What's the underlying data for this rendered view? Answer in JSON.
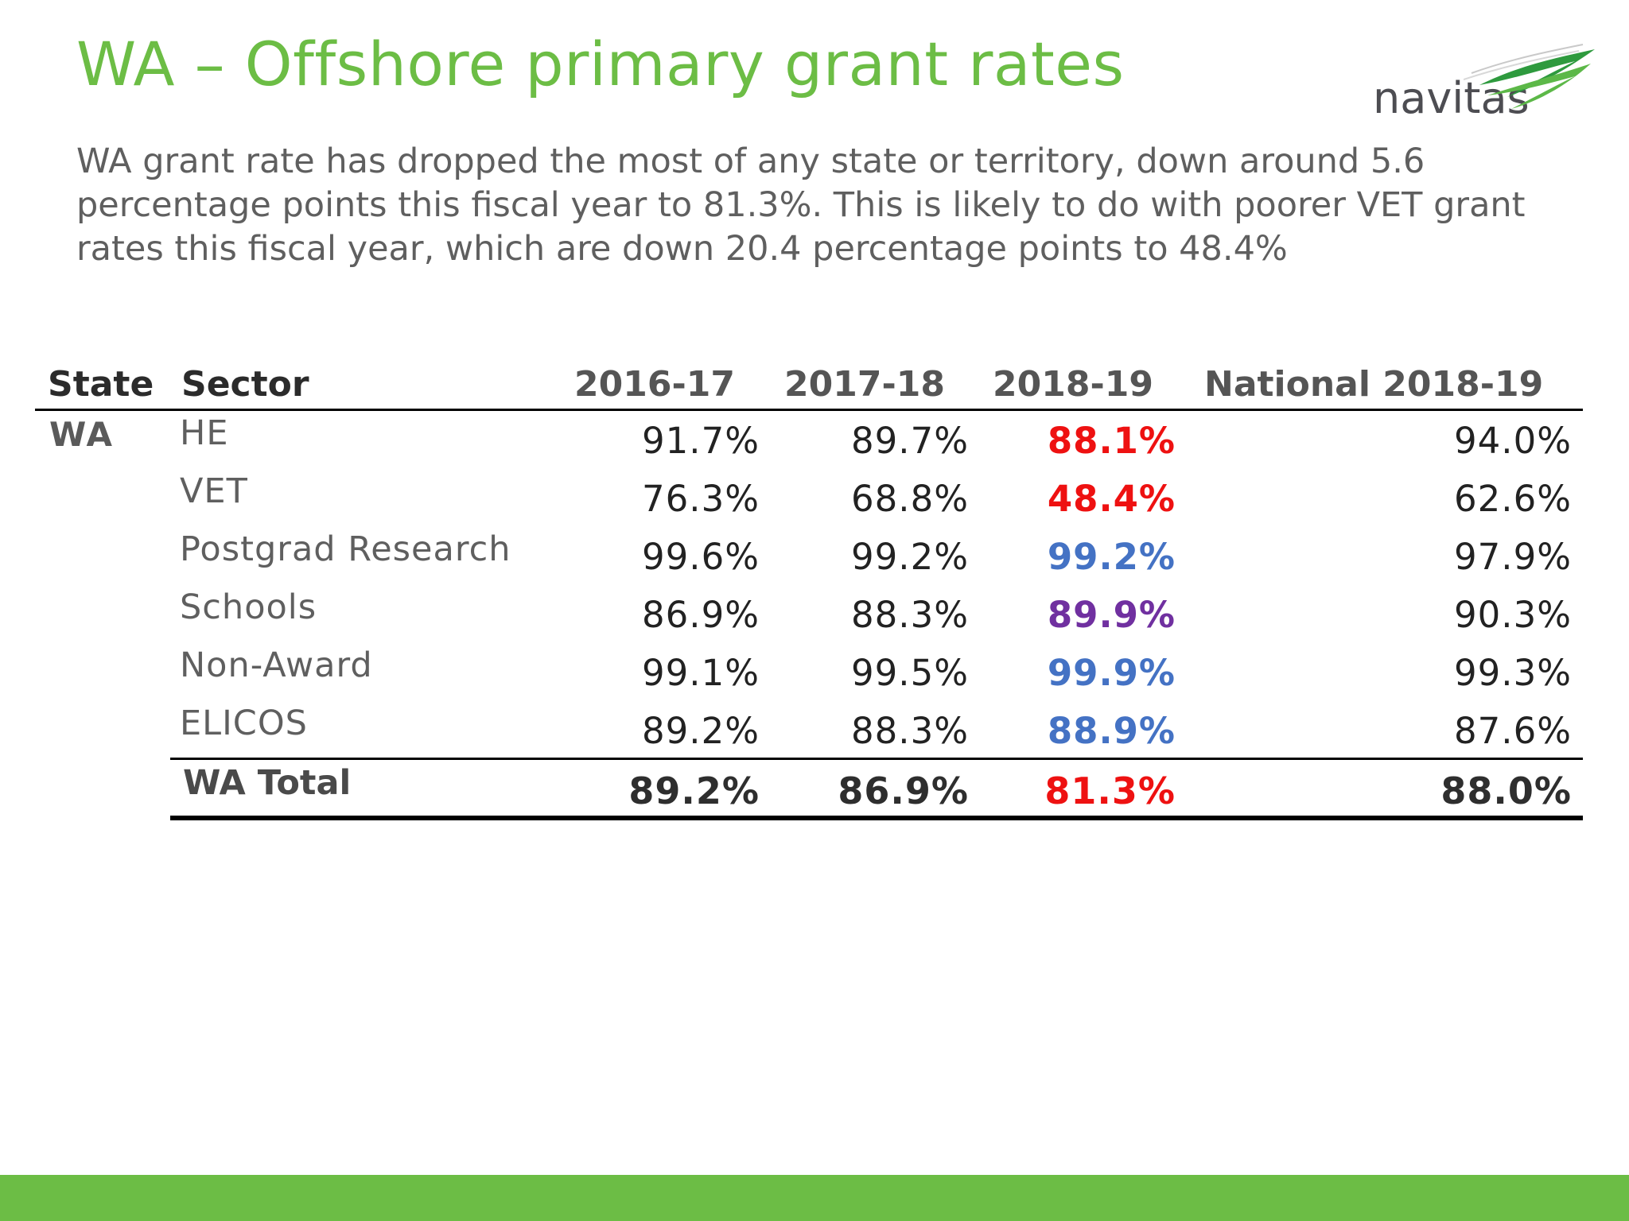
{
  "slide": {
    "title": "WA – Offshore primary grant rates",
    "subtitle": "WA grant rate has dropped the most of any state or territory, down around 5.6 percentage points this fiscal year to 81.3%. This is likely to do with poorer VET grant rates this fiscal year, which are down 20.4 percentage points to 48.4%",
    "logo_text": "navitas",
    "colors": {
      "title_green": "#6cbd45",
      "red": "#ee1111",
      "blue": "#4472c4",
      "purple": "#7030a0",
      "footer_green": "#6cbd45"
    }
  },
  "table": {
    "headers": {
      "state": "State",
      "sector": "Sector",
      "y1": "2016-17",
      "y2": "2017-18",
      "y3": "2018-19",
      "national": "National 2018-19"
    },
    "state": "WA",
    "rows": [
      {
        "sector": "HE",
        "y1": "91.7%",
        "y2": "89.7%",
        "y3": "88.1%",
        "y3_color": "#ee1111",
        "national": "94.0%"
      },
      {
        "sector": "VET",
        "y1": "76.3%",
        "y2": "68.8%",
        "y3": "48.4%",
        "y3_color": "#ee1111",
        "national": "62.6%"
      },
      {
        "sector": "Postgrad Research",
        "y1": "99.6%",
        "y2": "99.2%",
        "y3": "99.2%",
        "y3_color": "#4472c4",
        "national": "97.9%"
      },
      {
        "sector": "Schools",
        "y1": "86.9%",
        "y2": "88.3%",
        "y3": "89.9%",
        "y3_color": "#7030a0",
        "national": "90.3%"
      },
      {
        "sector": "Non-Award",
        "y1": "99.1%",
        "y2": "99.5%",
        "y3": "99.9%",
        "y3_color": "#4472c4",
        "national": "99.3%"
      },
      {
        "sector": "ELICOS",
        "y1": "89.2%",
        "y2": "88.3%",
        "y3": "88.9%",
        "y3_color": "#4472c4",
        "national": "87.6%"
      }
    ],
    "total": {
      "label": "WA Total",
      "y1": "89.2%",
      "y2": "86.9%",
      "y3": "81.3%",
      "y3_color": "#ee1111",
      "national": "88.0%"
    }
  }
}
